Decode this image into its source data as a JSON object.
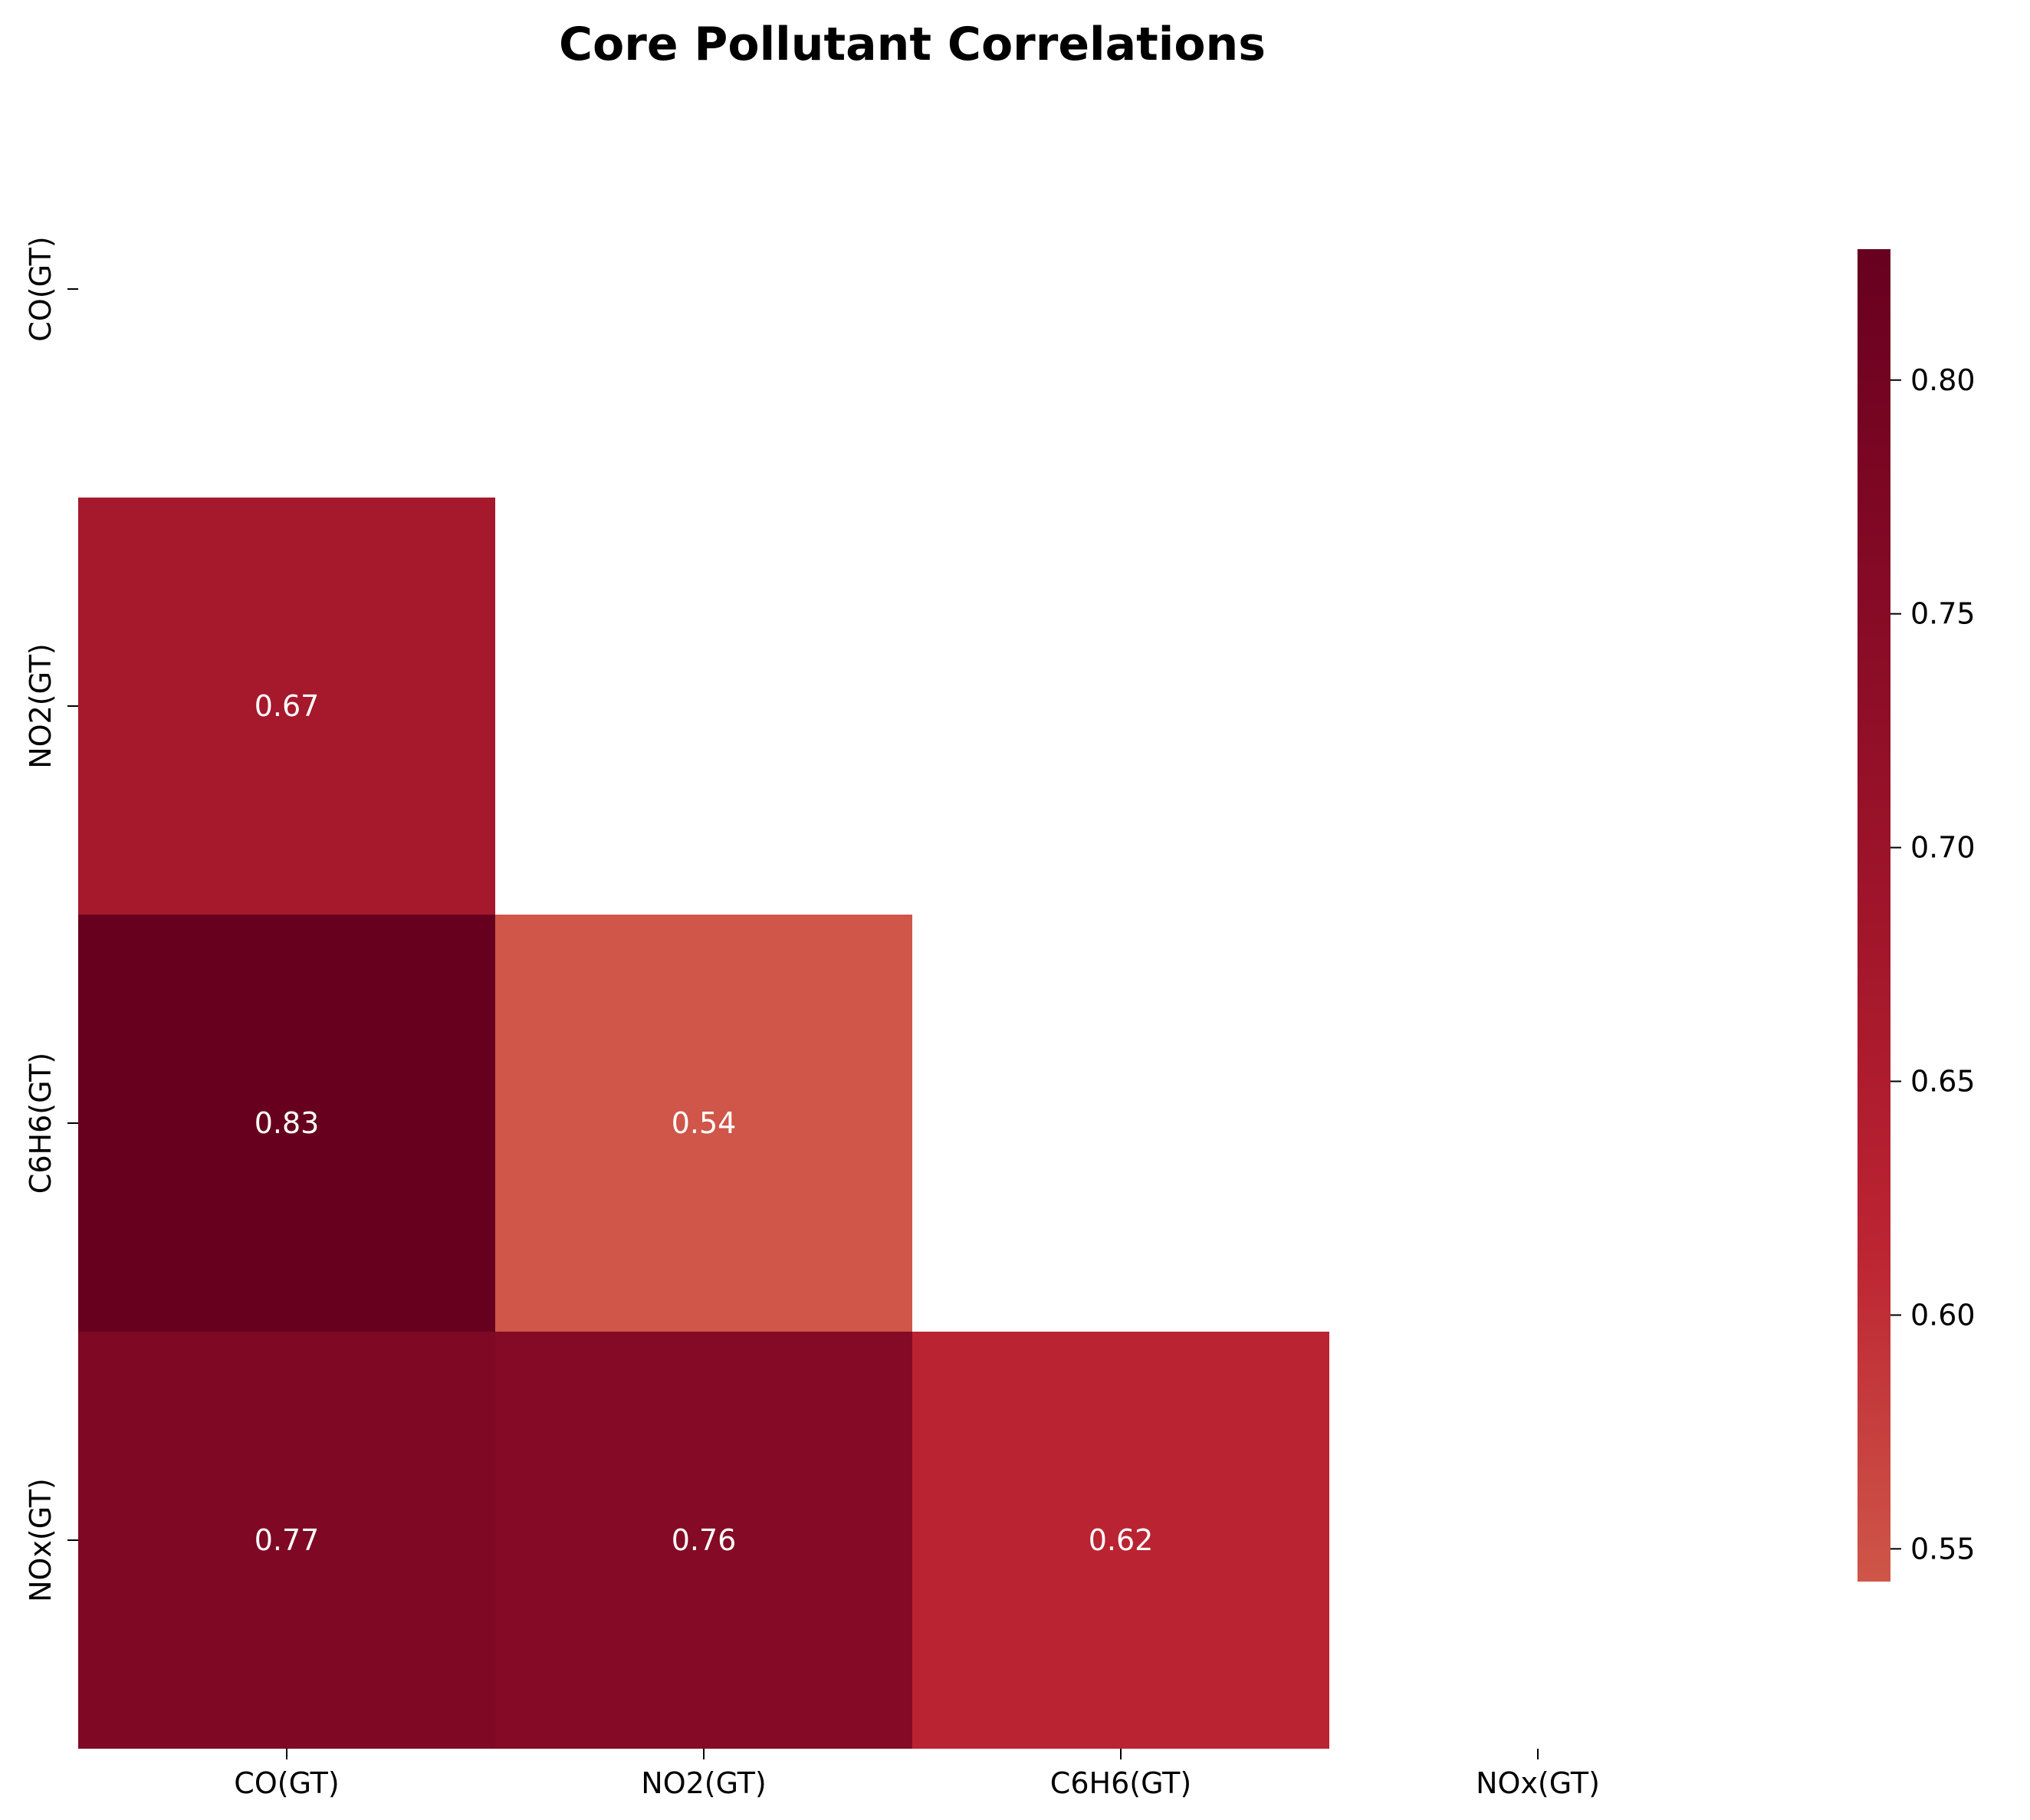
{
  "chart_data": {
    "type": "heatmap",
    "title": "Core Pollutant Correlations",
    "xlabel": "",
    "ylabel": "",
    "variables": [
      "CO(GT)",
      "NO2(GT)",
      "C6H6(GT)",
      "NOx(GT)"
    ],
    "mask": "upper triangle including diagonal",
    "cells": [
      {
        "row": "NO2(GT)",
        "col": "CO(GT)",
        "value": 0.67,
        "label": "0.67"
      },
      {
        "row": "C6H6(GT)",
        "col": "CO(GT)",
        "value": 0.83,
        "label": "0.83"
      },
      {
        "row": "C6H6(GT)",
        "col": "NO2(GT)",
        "value": 0.54,
        "label": "0.54"
      },
      {
        "row": "NOx(GT)",
        "col": "CO(GT)",
        "value": 0.77,
        "label": "0.77"
      },
      {
        "row": "NOx(GT)",
        "col": "NO2(GT)",
        "value": 0.76,
        "label": "0.76"
      },
      {
        "row": "NOx(GT)",
        "col": "C6H6(GT)",
        "value": 0.62,
        "label": "0.62"
      }
    ],
    "colorbar": {
      "range": [
        0.543,
        0.828
      ],
      "ticks": [
        0.8,
        0.75,
        0.7,
        0.65,
        0.6,
        0.55
      ],
      "tick_labels": [
        "0.80",
        "0.75",
        "0.70",
        "0.65",
        "0.60",
        "0.55"
      ],
      "colormap": "Reds (dark red at high values)",
      "color_stops": [
        "#cf5648",
        "#bc2432",
        "#a0152a",
        "#850a25",
        "#67001f"
      ]
    },
    "grid": false,
    "legend": "colorbar right"
  }
}
